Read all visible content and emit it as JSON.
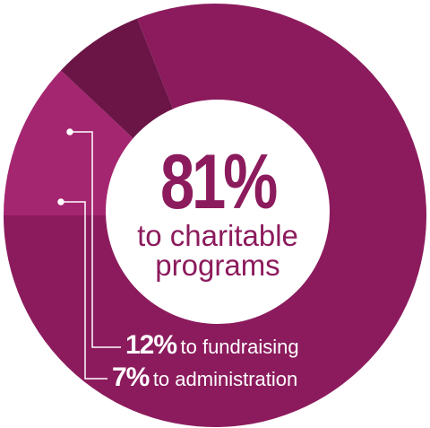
{
  "chart_data": {
    "type": "donut",
    "categories": [
      "to charitable programs",
      "to fundraising",
      "to administration"
    ],
    "values": [
      81,
      12,
      7
    ],
    "value_labels": [
      "81%",
      "12%",
      "7%"
    ],
    "colors": [
      "#8c1b5d",
      "#a52670",
      "#6b1547"
    ]
  }
}
